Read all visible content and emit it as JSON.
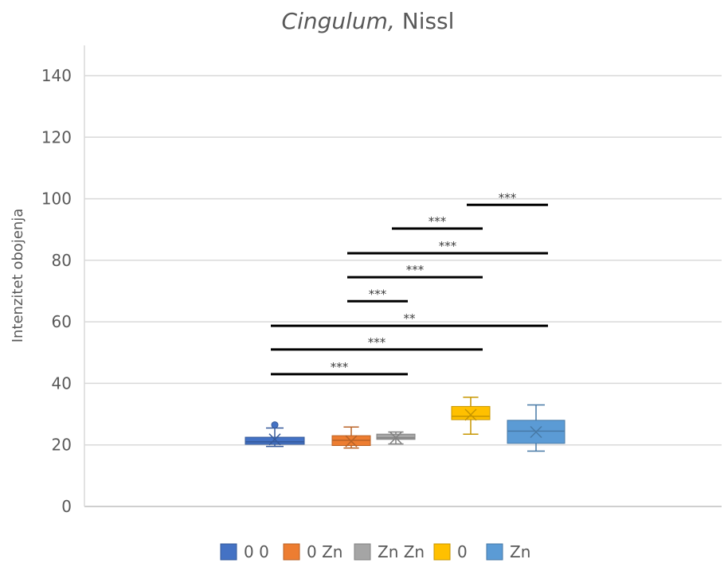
{
  "chart_data": {
    "type": "box",
    "title_main": "Cingulum,",
    "title_rest": " Nissl",
    "ylabel": "Intenzitet obojenja",
    "ylim": [
      0,
      140
    ],
    "yticks": [
      0,
      20,
      40,
      60,
      80,
      100,
      120,
      140
    ],
    "grid": true,
    "legend_position": "bottom",
    "series": [
      {
        "name": "0 0",
        "color": "#4472C4",
        "min": 19.5,
        "q1": 20.2,
        "median": 21.0,
        "q3": 22.5,
        "max": 25.5,
        "mean": 21.8,
        "outliers": [
          26.5
        ]
      },
      {
        "name": "0 Zn",
        "color": "#ED7D31",
        "min": 19.0,
        "q1": 19.8,
        "median": 21.5,
        "q3": 23.0,
        "max": 25.8,
        "mean": 21.2,
        "outliers": []
      },
      {
        "name": "Zn Zn",
        "color": "#A5A5A5",
        "min": 20.3,
        "q1": 21.8,
        "median": 22.3,
        "q3": 23.5,
        "max": 24.2,
        "mean": 22.3,
        "outliers": []
      },
      {
        "name": "0",
        "color": "#FFC000",
        "min": 23.5,
        "q1": 28.2,
        "median": 29.3,
        "q3": 32.5,
        "max": 35.5,
        "mean": 29.8,
        "outliers": []
      },
      {
        "name": "Zn",
        "color": "#5B9BD5",
        "min": 18.0,
        "q1": 20.5,
        "median": 24.5,
        "q3": 28.0,
        "max": 33.0,
        "mean": 24.2,
        "outliers": []
      }
    ],
    "significance": [
      {
        "from": 0,
        "to": 2,
        "y": 43,
        "label": "***"
      },
      {
        "from": 0,
        "to": 3,
        "y": 51,
        "label": "***"
      },
      {
        "from": 0,
        "to": 4,
        "y": 58.7,
        "label": "**"
      },
      {
        "from": 1,
        "to": 2,
        "y": 66.7,
        "label": "***"
      },
      {
        "from": 1,
        "to": 3,
        "y": 74.5,
        "label": "***"
      },
      {
        "from": 1,
        "to": 4,
        "y": 82.3,
        "label": "***"
      },
      {
        "from": 2,
        "to": 3,
        "y": 90.3,
        "label": "***"
      },
      {
        "from": 3,
        "to": 4,
        "y": 98,
        "label": "***"
      }
    ]
  }
}
